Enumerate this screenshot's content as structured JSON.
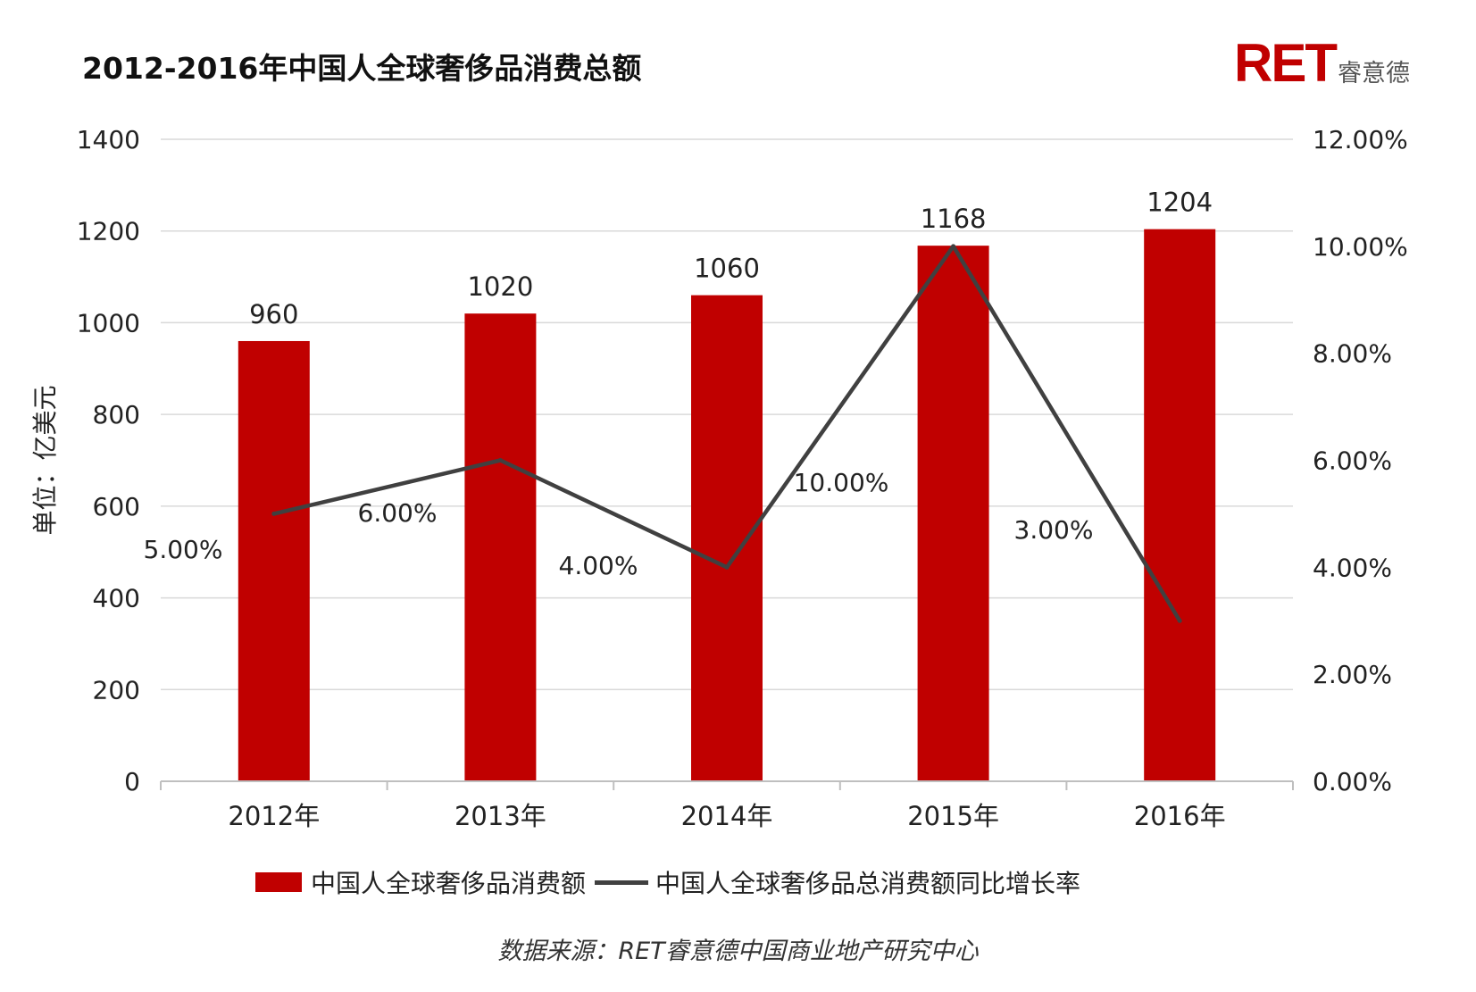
{
  "title": "2012-2016年中国人全球奢侈品消费总额",
  "logo": {
    "text": "RET",
    "subtitle": "睿意德"
  },
  "source": "数据来源：RET睿意德中国商业地产研究中心",
  "colors": {
    "bar": "#c00000",
    "line": "#404040",
    "grid": "#d9d9d9"
  },
  "chart_data": {
    "type": "bar",
    "title": "2012-2016年中国人全球奢侈品消费总额",
    "categories": [
      "2012年",
      "2013年",
      "2014年",
      "2015年",
      "2016年"
    ],
    "series": [
      {
        "name": "中国人全球奢侈品消费额",
        "type": "bar",
        "axis": "left",
        "values": [
          960,
          1020,
          1060,
          1168,
          1204
        ],
        "labels": [
          "960",
          "1020",
          "1060",
          "1168",
          "1204"
        ]
      },
      {
        "name": "中国人全球奢侈品总消费额同比增长率",
        "type": "line",
        "axis": "right",
        "values": [
          5.0,
          6.0,
          4.0,
          10.0,
          3.0
        ],
        "labels": [
          "5.00%",
          "6.00%",
          "4.00%",
          "10.00%",
          "3.00%"
        ]
      }
    ],
    "ylabel": "单位：亿美元",
    "ylim": [
      0,
      1400
    ],
    "yticks": [
      "0",
      "200",
      "400",
      "600",
      "800",
      "1000",
      "1200",
      "1400"
    ],
    "y2lim": [
      0,
      12
    ],
    "y2ticks": [
      "0.00%",
      "2.00%",
      "4.00%",
      "6.00%",
      "8.00%",
      "10.00%",
      "12.00%"
    ],
    "grid": true,
    "legend": "bottom"
  }
}
